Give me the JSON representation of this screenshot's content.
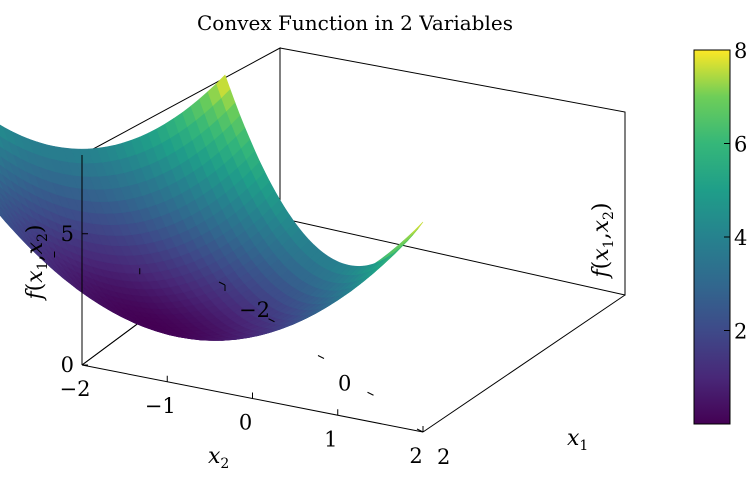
{
  "chart_data": {
    "type": "surface",
    "title": "Convex Function in 2 Variables",
    "function": "x1^2 + x2^2",
    "x1": {
      "label_main": "x",
      "label_sub": "1",
      "range": [
        -2,
        2
      ],
      "ticks": [
        "−2",
        "0",
        "2"
      ]
    },
    "x2": {
      "label_main": "x",
      "label_sub": "2",
      "range": [
        -2,
        2
      ],
      "ticks": [
        "−2",
        "−1",
        "0",
        "1",
        "2"
      ]
    },
    "z": {
      "label_f": "f",
      "label_open": "(",
      "label_x": "x",
      "label_sub1": "1",
      "label_comma": ",",
      "label_sub2": "2",
      "label_close": ")",
      "range": [
        0,
        8
      ],
      "ticks": [
        "0",
        "5"
      ]
    },
    "colorbar": {
      "colormap": "viridis",
      "range": [
        0,
        8
      ],
      "ticks": [
        "2",
        "4",
        "6",
        "8"
      ]
    },
    "grid": false,
    "colors": {
      "viridis_low": "#440154",
      "viridis_mid": "#21918c",
      "viridis_high": "#fde725"
    }
  }
}
